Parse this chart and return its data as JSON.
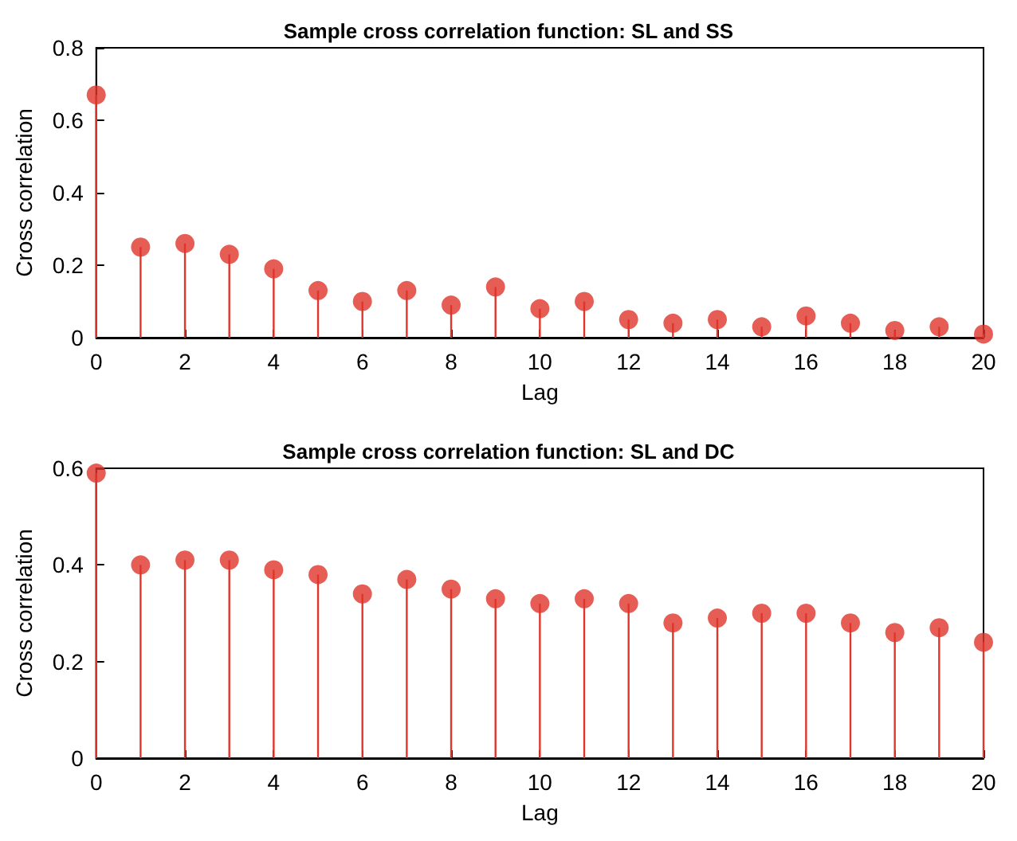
{
  "chart_data": [
    {
      "type": "lollipop",
      "title": "Sample cross correlation function: SL and SS",
      "xlabel": "Lag",
      "ylabel": "Cross correlation",
      "x": [
        0,
        1,
        2,
        3,
        4,
        5,
        6,
        7,
        8,
        9,
        10,
        11,
        12,
        13,
        14,
        15,
        16,
        17,
        18,
        19,
        20
      ],
      "xlim": [
        0,
        20
      ],
      "xticks": [
        0,
        2,
        4,
        6,
        8,
        10,
        12,
        14,
        16,
        18,
        20
      ],
      "ylim": [
        0,
        0.8
      ],
      "yticks": [
        0,
        0.2,
        0.4,
        0.6,
        0.8
      ],
      "marker": "circle",
      "grid": false,
      "series": [
        {
          "color": "#e0352b",
          "values": [
            0.67,
            0.25,
            0.26,
            0.23,
            0.19,
            0.13,
            0.1,
            0.13,
            0.09,
            0.14,
            0.08,
            0.1,
            0.05,
            0.04,
            0.05,
            0.03,
            0.06,
            0.04,
            0.02,
            0.03,
            0.01
          ]
        }
      ]
    },
    {
      "type": "lollipop",
      "title": "Sample cross correlation function: SL and DC",
      "xlabel": "Lag",
      "ylabel": "Cross correlation",
      "x": [
        0,
        1,
        2,
        3,
        4,
        5,
        6,
        7,
        8,
        9,
        10,
        11,
        12,
        13,
        14,
        15,
        16,
        17,
        18,
        19,
        20
      ],
      "xlim": [
        0,
        20
      ],
      "xticks": [
        0,
        2,
        4,
        6,
        8,
        10,
        12,
        14,
        16,
        18,
        20
      ],
      "ylim": [
        0,
        0.6
      ],
      "yticks": [
        0,
        0.2,
        0.4,
        0.6
      ],
      "marker": "circle",
      "grid": false,
      "series": [
        {
          "color": "#e0352b",
          "values": [
            0.59,
            0.4,
            0.41,
            0.41,
            0.39,
            0.38,
            0.34,
            0.37,
            0.35,
            0.33,
            0.32,
            0.33,
            0.32,
            0.28,
            0.29,
            0.3,
            0.3,
            0.28,
            0.26,
            0.27,
            0.24
          ]
        }
      ]
    }
  ]
}
